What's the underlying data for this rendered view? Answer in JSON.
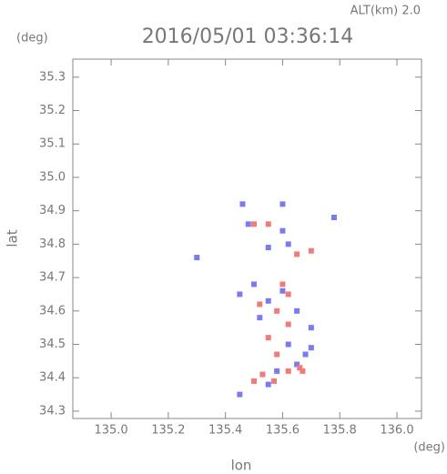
{
  "chart_data": {
    "type": "scatter",
    "title": "2016/05/01 03:36:14",
    "subtitle": "ALT(km) 2.0",
    "y_unit": "(deg)",
    "x_unit": "(deg)",
    "x_label": "lon",
    "y_label": "lat",
    "xlim": [
      134.866,
      136.086
    ],
    "ylim": [
      34.278,
      35.354
    ],
    "xticks": [
      {
        "value": 135.0,
        "label": "135.0"
      },
      135.2,
      135.4,
      135.6,
      135.8,
      {
        "value": 136.0,
        "label": "136.0"
      }
    ],
    "yticks": [
      35.3,
      35.2,
      35.1,
      {
        "value": 35.0,
        "label": "35.0"
      },
      34.9,
      34.8,
      34.7,
      34.6,
      34.5,
      34.4,
      34.3
    ],
    "series": [
      {
        "color": "#7b7bef",
        "x": [
          135.46,
          135.6,
          135.78,
          135.55,
          135.62,
          135.3,
          135.5,
          135.45,
          135.55,
          135.6,
          135.52,
          135.65,
          135.7,
          135.62,
          135.68,
          135.7,
          135.58,
          135.45,
          135.55,
          135.65,
          135.48,
          135.6
        ],
        "y": [
          34.92,
          34.92,
          34.88,
          34.79,
          34.8,
          34.76,
          34.68,
          34.65,
          34.63,
          34.66,
          34.58,
          34.6,
          34.55,
          34.5,
          34.47,
          34.49,
          34.42,
          34.35,
          34.38,
          34.44,
          34.86,
          34.84
        ]
      },
      {
        "color": "#ef7b7b",
        "x": [
          135.5,
          135.55,
          135.65,
          135.6,
          135.62,
          135.52,
          135.58,
          135.62,
          135.55,
          135.58,
          135.62,
          135.67,
          135.5,
          135.57,
          135.53,
          135.7,
          135.66
        ],
        "y": [
          34.86,
          34.86,
          34.77,
          34.68,
          34.65,
          34.62,
          34.6,
          34.56,
          34.52,
          34.47,
          34.42,
          34.42,
          34.39,
          34.39,
          34.41,
          34.78,
          34.43
        ]
      }
    ]
  }
}
